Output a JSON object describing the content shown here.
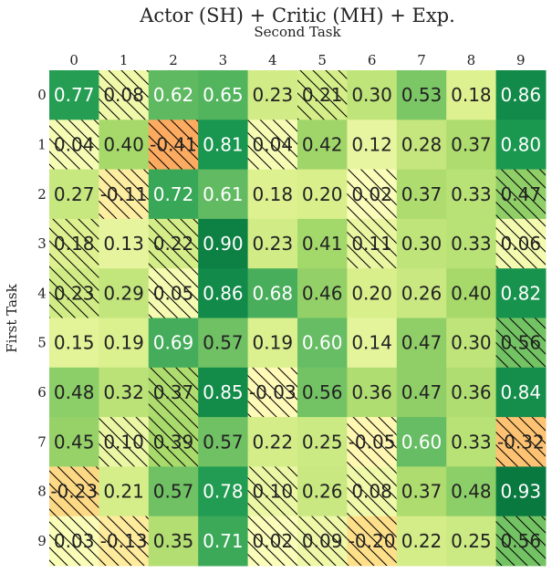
{
  "chart_data": {
    "type": "heatmap",
    "title": "Actor (SH) + Critic (MH) + Exp.",
    "xlabel": "Second Task",
    "ylabel": "First Task",
    "x_labels": [
      "0",
      "1",
      "2",
      "3",
      "4",
      "5",
      "6",
      "7",
      "8",
      "9"
    ],
    "y_labels": [
      "0",
      "1",
      "2",
      "3",
      "4",
      "5",
      "6",
      "7",
      "8",
      "9"
    ],
    "colormap": "RdYlGn",
    "value_range": [
      -1,
      1
    ],
    "values": [
      [
        0.77,
        0.08,
        0.62,
        0.65,
        0.23,
        0.21,
        0.3,
        0.53,
        0.18,
        0.86
      ],
      [
        0.04,
        0.4,
        -0.41,
        0.81,
        0.04,
        0.42,
        0.12,
        0.28,
        0.37,
        0.8
      ],
      [
        0.27,
        -0.11,
        0.72,
        0.61,
        0.18,
        0.2,
        0.02,
        0.37,
        0.33,
        0.47
      ],
      [
        0.18,
        0.13,
        0.22,
        0.9,
        0.23,
        0.41,
        0.11,
        0.3,
        0.33,
        0.06
      ],
      [
        0.23,
        0.29,
        0.05,
        0.86,
        0.68,
        0.46,
        0.2,
        0.26,
        0.4,
        0.82
      ],
      [
        0.15,
        0.19,
        0.69,
        0.57,
        0.19,
        0.6,
        0.14,
        0.47,
        0.3,
        0.56
      ],
      [
        0.48,
        0.32,
        0.37,
        0.85,
        -0.03,
        0.56,
        0.36,
        0.47,
        0.36,
        0.84
      ],
      [
        0.45,
        0.1,
        0.39,
        0.57,
        0.22,
        0.25,
        -0.05,
        0.6,
        0.33,
        -0.32
      ],
      [
        -0.23,
        0.21,
        0.57,
        0.78,
        0.1,
        0.26,
        0.08,
        0.37,
        0.48,
        0.93
      ],
      [
        0.03,
        -0.13,
        0.35,
        0.71,
        0.02,
        0.09,
        -0.2,
        0.22,
        0.25,
        0.56
      ]
    ],
    "hatched": [
      [
        false,
        true,
        false,
        false,
        false,
        true,
        false,
        false,
        false,
        false
      ],
      [
        true,
        false,
        true,
        false,
        true,
        false,
        false,
        false,
        false,
        false
      ],
      [
        false,
        true,
        false,
        false,
        false,
        false,
        true,
        false,
        false,
        true
      ],
      [
        true,
        false,
        true,
        false,
        false,
        false,
        true,
        false,
        false,
        true
      ],
      [
        true,
        false,
        true,
        false,
        false,
        false,
        false,
        false,
        false,
        false
      ],
      [
        false,
        false,
        false,
        false,
        false,
        false,
        false,
        false,
        false,
        true
      ],
      [
        false,
        false,
        true,
        false,
        true,
        false,
        false,
        false,
        false,
        false
      ],
      [
        false,
        true,
        true,
        false,
        false,
        false,
        true,
        false,
        false,
        true
      ],
      [
        true,
        false,
        false,
        false,
        true,
        false,
        true,
        false,
        false,
        false
      ],
      [
        true,
        true,
        false,
        false,
        true,
        true,
        true,
        false,
        false,
        true
      ]
    ]
  }
}
